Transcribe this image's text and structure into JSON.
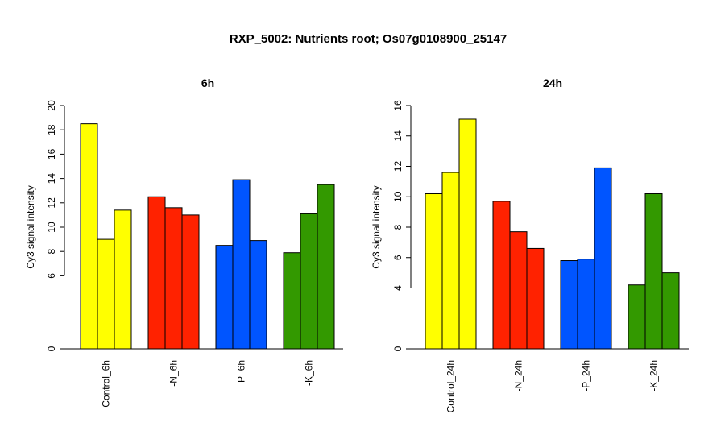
{
  "page_title": "RXP_5002: Nutrients root; Os07g0108900_25147",
  "chart_data": [
    {
      "type": "bar",
      "title": "6h",
      "ylabel": "Cy3 signal intensity",
      "xlabel": "",
      "ylim": [
        0,
        20
      ],
      "yticks": [
        "0",
        "6",
        "8",
        "10",
        "12",
        "14",
        "16",
        "18",
        "20"
      ],
      "groups": [
        {
          "label": "Control_6h",
          "color": "#ffff00",
          "values": [
            18.5,
            9.0,
            11.4
          ]
        },
        {
          "label": "-N_6h",
          "color": "#ff2200",
          "values": [
            12.5,
            11.6,
            11.0
          ]
        },
        {
          "label": "-P_6h",
          "color": "#0055ff",
          "values": [
            8.5,
            13.9,
            8.9
          ]
        },
        {
          "label": "-K_6h",
          "color": "#339900",
          "values": [
            7.9,
            11.1,
            13.5
          ]
        }
      ]
    },
    {
      "type": "bar",
      "title": "24h",
      "ylabel": "Cy3 signal intensity",
      "xlabel": "",
      "ylim": [
        0,
        16
      ],
      "yticks": [
        "0",
        "4",
        "6",
        "8",
        "10",
        "12",
        "14",
        "16"
      ],
      "groups": [
        {
          "label": "Control_24h",
          "color": "#ffff00",
          "values": [
            10.2,
            11.6,
            15.1
          ]
        },
        {
          "label": "-N_24h",
          "color": "#ff2200",
          "values": [
            9.7,
            7.7,
            6.6
          ]
        },
        {
          "label": "-P_24h",
          "color": "#0055ff",
          "values": [
            5.8,
            5.9,
            11.9
          ]
        },
        {
          "label": "-K_24h",
          "color": "#339900",
          "values": [
            4.2,
            10.2,
            5.0
          ]
        }
      ]
    }
  ]
}
